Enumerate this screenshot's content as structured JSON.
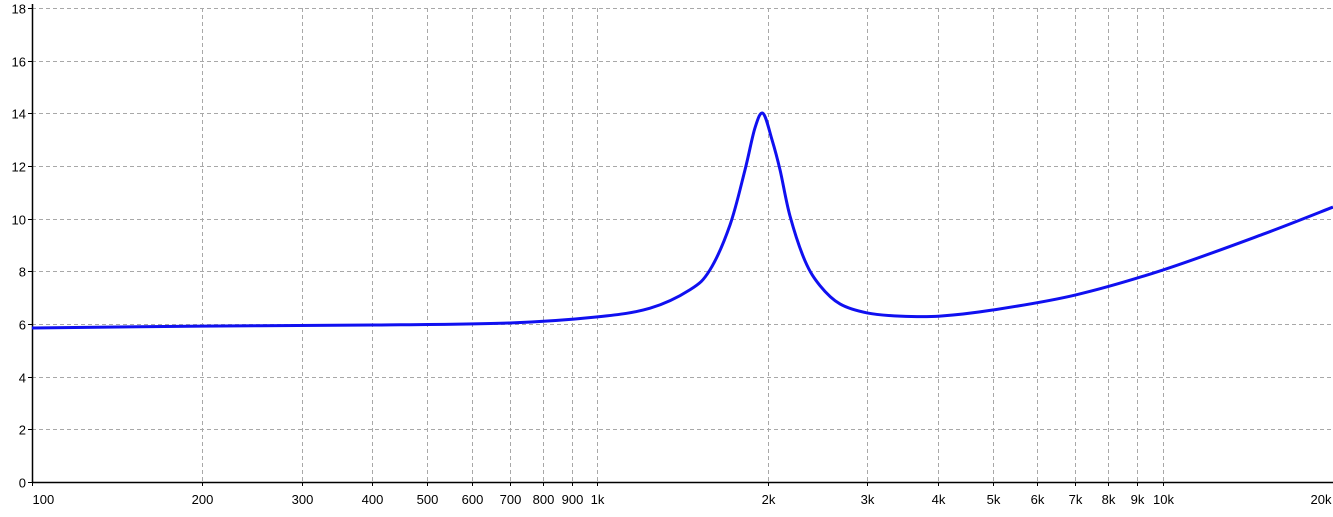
{
  "chart_data": {
    "type": "line",
    "title": "",
    "xlabel": "",
    "ylabel": "",
    "x_scale": "log",
    "xlim": [
      100,
      20000
    ],
    "ylim": [
      0,
      18
    ],
    "grid": true,
    "x_ticks": [
      100,
      200,
      300,
      400,
      500,
      600,
      700,
      800,
      900,
      1000,
      2000,
      3000,
      4000,
      5000,
      6000,
      7000,
      8000,
      9000,
      10000,
      20000
    ],
    "x_tick_labels": [
      "100",
      "200",
      "300",
      "400",
      "500",
      "600",
      "700",
      "800",
      "900",
      "1k",
      "2k",
      "3k",
      "4k",
      "5k",
      "6k",
      "7k",
      "8k",
      "9k",
      "10k",
      "20k"
    ],
    "y_ticks": [
      0,
      2,
      4,
      6,
      8,
      10,
      12,
      14,
      16,
      18
    ],
    "y_tick_labels": [
      "0",
      "2",
      "4",
      "6",
      "8",
      "10",
      "12",
      "14",
      "16",
      "18"
    ],
    "colors": {
      "line": "#1010f0",
      "grid": "#a8a8a8",
      "axis": "#000000"
    },
    "series": [
      {
        "x": [
          100,
          200,
          400,
          700,
          1000,
          1239,
          1458,
          1581,
          1716,
          1824,
          1900,
          1963,
          2036,
          2104,
          2191,
          2329,
          2477,
          2686,
          3000,
          3428,
          4034,
          5000,
          7000,
          10000,
          15000,
          20000
        ],
        "y": [
          5.85,
          5.92,
          5.96,
          6.04,
          6.27,
          6.6,
          7.3,
          8.05,
          9.76,
          11.85,
          13.45,
          14.0,
          13.0,
          11.85,
          10.1,
          8.4,
          7.45,
          6.76,
          6.42,
          6.3,
          6.3,
          6.53,
          7.1,
          8.05,
          9.4,
          10.44
        ]
      }
    ]
  }
}
